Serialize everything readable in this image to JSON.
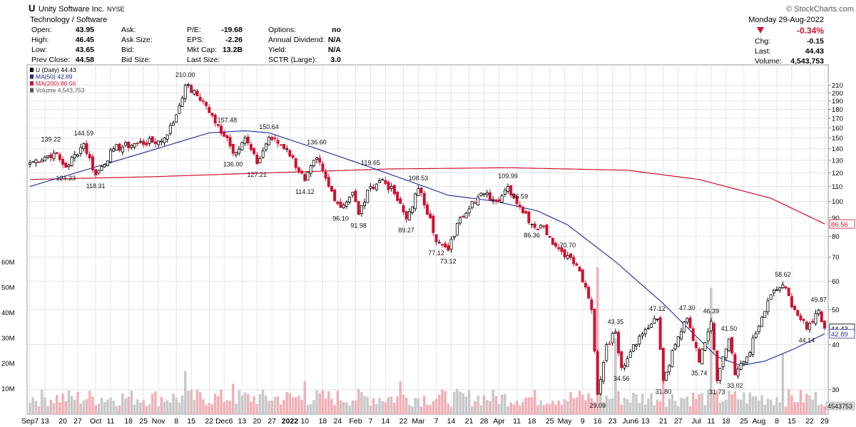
{
  "header": {
    "symbol": "U",
    "company": "Unity Software Inc.",
    "exchange": "NYSE",
    "sector": "Technology / Software",
    "copyright": "© StockCharts.com",
    "date": "Monday 29-Aug-2022",
    "change_pct": "-0.34%",
    "change_color": "#cc1133",
    "quotes_left": [
      {
        "label": "Open:",
        "value": "43.95"
      },
      {
        "label": "High:",
        "value": "46.45"
      },
      {
        "label": "Low:",
        "value": "43.65"
      },
      {
        "label": "Prev Close:",
        "value": "44.58"
      }
    ],
    "quotes_mid": [
      {
        "label": "Ask:",
        "value": ""
      },
      {
        "label": "Ask Size:",
        "value": ""
      },
      {
        "label": "Bid:",
        "value": ""
      },
      {
        "label": "Bid Size:",
        "value": ""
      }
    ],
    "quotes_fund": [
      {
        "label": "P/E:",
        "value": "-19.68"
      },
      {
        "label": "EPS:",
        "value": "-2.26"
      },
      {
        "label": "Mkt Cap:",
        "value": "13.2B"
      },
      {
        "label": "Last Size:",
        "value": ""
      }
    ],
    "quotes_opt": [
      {
        "label": "Options:",
        "value": "no"
      },
      {
        "label": "Annual Dividend:",
        "value": "N/A"
      },
      {
        "label": "Yield:",
        "value": "N/A"
      },
      {
        "label": "SCTR (Large):",
        "value": "3.0"
      }
    ],
    "quotes_right": [
      {
        "label": "Chg:",
        "value": "-0.15"
      },
      {
        "label": "Last:",
        "value": "44.43"
      },
      {
        "label": "Volume:",
        "value": "4,543,753"
      }
    ]
  },
  "legend": [
    {
      "text": "U (Daily) 44.43",
      "color": "#000000"
    },
    {
      "text": "MA(50) 42.89",
      "color": "#1a2a9a"
    },
    {
      "text": "MA(200) 86.56",
      "color": "#d01030"
    },
    {
      "text": "Volume 4,543,753",
      "color": "#555555"
    }
  ],
  "chart_data": {
    "type": "candlestick",
    "title": "U (Daily) 44.43",
    "y_scale": "log",
    "ylim": [
      26,
      235
    ],
    "price_ticks": [
      30,
      40,
      50,
      60,
      70,
      80,
      90,
      100,
      110,
      120,
      130,
      140,
      150,
      160,
      170,
      180,
      190,
      200,
      210
    ],
    "volume_ticks": [
      "10M",
      "20M",
      "30M",
      "40M",
      "50M",
      "60M"
    ],
    "x_ticks": [
      "Sep7",
      "13",
      "20",
      "27",
      "Oct",
      "11",
      "18",
      "25",
      "Nov",
      "8",
      "15",
      "22",
      "Dec6",
      "13",
      "20",
      "27",
      "2022",
      "10",
      "18",
      "24",
      "Feb",
      "7",
      "14",
      "22",
      "Mar",
      "7",
      "14",
      "21",
      "28",
      "Apr",
      "11",
      "18",
      "25",
      "May",
      "9",
      "16",
      "23",
      "Jun6",
      "13",
      "21",
      "27",
      "Jul",
      "11",
      "18",
      "25",
      "Aug",
      "8",
      "15",
      "22",
      "29"
    ],
    "anchors": [
      [
        0,
        128
      ],
      [
        8,
        136
      ],
      [
        12,
        124.33
      ],
      [
        18,
        144.59
      ],
      [
        22,
        118.31
      ],
      [
        28,
        140
      ],
      [
        36,
        145
      ],
      [
        44,
        147
      ],
      [
        48,
        165
      ],
      [
        52,
        210
      ],
      [
        58,
        190
      ],
      [
        62,
        165
      ],
      [
        66,
        150
      ],
      [
        68,
        136
      ],
      [
        72,
        150
      ],
      [
        76,
        127.21
      ],
      [
        80,
        150.64
      ],
      [
        86,
        140
      ],
      [
        92,
        114.12
      ],
      [
        96,
        132
      ],
      [
        100,
        110
      ],
      [
        104,
        96.1
      ],
      [
        108,
        106
      ],
      [
        110,
        91.98
      ],
      [
        114,
        110
      ],
      [
        118,
        115
      ],
      [
        122,
        105
      ],
      [
        126,
        89.27
      ],
      [
        130,
        108.53
      ],
      [
        134,
        90
      ],
      [
        136,
        77.12
      ],
      [
        140,
        73.12
      ],
      [
        144,
        90
      ],
      [
        148,
        100
      ],
      [
        152,
        105
      ],
      [
        156,
        100
      ],
      [
        160,
        109.99
      ],
      [
        164,
        96.59
      ],
      [
        168,
        86.36
      ],
      [
        172,
        85
      ],
      [
        176,
        75
      ],
      [
        180,
        70.7
      ],
      [
        184,
        64
      ],
      [
        188,
        50
      ],
      [
        190,
        29.09
      ],
      [
        193,
        40
      ],
      [
        196,
        43.35
      ],
      [
        198,
        34.56
      ],
      [
        202,
        40
      ],
      [
        206,
        44
      ],
      [
        210,
        47.12
      ],
      [
        212,
        31.8
      ],
      [
        216,
        40
      ],
      [
        220,
        47.3
      ],
      [
        224,
        35.74
      ],
      [
        228,
        46.39
      ],
      [
        230,
        31.73
      ],
      [
        234,
        41.5
      ],
      [
        236,
        33.02
      ],
      [
        240,
        37
      ],
      [
        244,
        45
      ],
      [
        248,
        55
      ],
      [
        252,
        58.62
      ],
      [
        256,
        50
      ],
      [
        260,
        44.14
      ],
      [
        264,
        49.87
      ],
      [
        266,
        44.43
      ]
    ],
    "ma50_anchors": [
      [
        0,
        110
      ],
      [
        40,
        138
      ],
      [
        60,
        155
      ],
      [
        72,
        157
      ],
      [
        80,
        155
      ],
      [
        96,
        140
      ],
      [
        112,
        126
      ],
      [
        128,
        113
      ],
      [
        140,
        104
      ],
      [
        156,
        100
      ],
      [
        170,
        94
      ],
      [
        180,
        86
      ],
      [
        196,
        68
      ],
      [
        212,
        52
      ],
      [
        222,
        43
      ],
      [
        230,
        37
      ],
      [
        238,
        35
      ],
      [
        246,
        36
      ],
      [
        256,
        39
      ],
      [
        266,
        42.89
      ]
    ],
    "ma200_anchors": [
      [
        0,
        115
      ],
      [
        40,
        117
      ],
      [
        80,
        120
      ],
      [
        120,
        123
      ],
      [
        160,
        124
      ],
      [
        200,
        122
      ],
      [
        224,
        115
      ],
      [
        248,
        102
      ],
      [
        266,
        86.56
      ]
    ],
    "annotations": [
      {
        "text": "139.22",
        "i": 7,
        "v": 139.22,
        "pos": "above"
      },
      {
        "text": "144.59",
        "i": 18,
        "v": 144.59,
        "pos": "above"
      },
      {
        "text": "124.33",
        "i": 12,
        "v": 124.33,
        "pos": "below"
      },
      {
        "text": "118.31",
        "i": 22,
        "v": 118.31,
        "pos": "below"
      },
      {
        "text": "210.00",
        "i": 52,
        "v": 210,
        "pos": "above"
      },
      {
        "text": "157.48",
        "i": 66,
        "v": 157.48,
        "pos": "above"
      },
      {
        "text": "136.00",
        "i": 68,
        "v": 136,
        "pos": "below"
      },
      {
        "text": "150.64",
        "i": 80,
        "v": 150.64,
        "pos": "above"
      },
      {
        "text": "127.21",
        "i": 76,
        "v": 127.21,
        "pos": "below"
      },
      {
        "text": "136.60",
        "i": 96,
        "v": 136.6,
        "pos": "above"
      },
      {
        "text": "114.12",
        "i": 92,
        "v": 114.12,
        "pos": "below"
      },
      {
        "text": "119.65",
        "i": 114,
        "v": 119.65,
        "pos": "above"
      },
      {
        "text": "96.10",
        "i": 104,
        "v": 96.1,
        "pos": "below"
      },
      {
        "text": "91.98",
        "i": 110,
        "v": 91.98,
        "pos": "below"
      },
      {
        "text": "108.53",
        "i": 130,
        "v": 108.53,
        "pos": "above"
      },
      {
        "text": "89.27",
        "i": 126,
        "v": 89.27,
        "pos": "below"
      },
      {
        "text": "77.12",
        "i": 136,
        "v": 77.12,
        "pos": "below"
      },
      {
        "text": "73.12",
        "i": 140,
        "v": 73.12,
        "pos": "below"
      },
      {
        "text": "109.99",
        "i": 160,
        "v": 109.99,
        "pos": "above"
      },
      {
        "text": "96.59",
        "i": 164,
        "v": 96.59,
        "pos": "above"
      },
      {
        "text": "86.36",
        "i": 168,
        "v": 86.36,
        "pos": "below"
      },
      {
        "text": "70.70",
        "i": 180,
        "v": 70.7,
        "pos": "above"
      },
      {
        "text": "29.09",
        "i": 190,
        "v": 29.09,
        "pos": "below"
      },
      {
        "text": "43.35",
        "i": 196,
        "v": 43.35,
        "pos": "above"
      },
      {
        "text": "34.56",
        "i": 198,
        "v": 34.56,
        "pos": "below"
      },
      {
        "text": "47.12",
        "i": 210,
        "v": 47.12,
        "pos": "above"
      },
      {
        "text": "31.80",
        "i": 212,
        "v": 31.8,
        "pos": "below"
      },
      {
        "text": "47.30",
        "i": 220,
        "v": 47.3,
        "pos": "above"
      },
      {
        "text": "35.74",
        "i": 224,
        "v": 35.74,
        "pos": "below"
      },
      {
        "text": "46.39",
        "i": 228,
        "v": 46.39,
        "pos": "above"
      },
      {
        "text": "31.73",
        "i": 230,
        "v": 31.73,
        "pos": "below"
      },
      {
        "text": "41.50",
        "i": 234,
        "v": 41.5,
        "pos": "above"
      },
      {
        "text": "33.02",
        "i": 236,
        "v": 33.02,
        "pos": "below"
      },
      {
        "text": "58.62",
        "i": 252,
        "v": 58.62,
        "pos": "above"
      },
      {
        "text": "44.14",
        "i": 260,
        "v": 44.14,
        "pos": "below"
      },
      {
        "text": "49.87",
        "i": 264,
        "v": 49.87,
        "pos": "above"
      }
    ],
    "volume_spikes": [
      [
        52,
        17
      ],
      [
        68,
        12
      ],
      [
        92,
        13
      ],
      [
        124,
        13
      ],
      [
        190,
        58
      ],
      [
        196,
        30
      ],
      [
        212,
        18
      ],
      [
        228,
        50
      ],
      [
        252,
        24
      ]
    ],
    "last_price_label": "44.43",
    "ma50_label": "42.89",
    "ma200_label": "86.56",
    "volume_label": "4543753",
    "colors": {
      "up": "#000000",
      "down": "#d01030",
      "ma50": "#2a3aa0",
      "ma200": "#d01030",
      "vol_up": "#c8c8c8",
      "vol_down": "#f0b0b8"
    }
  }
}
